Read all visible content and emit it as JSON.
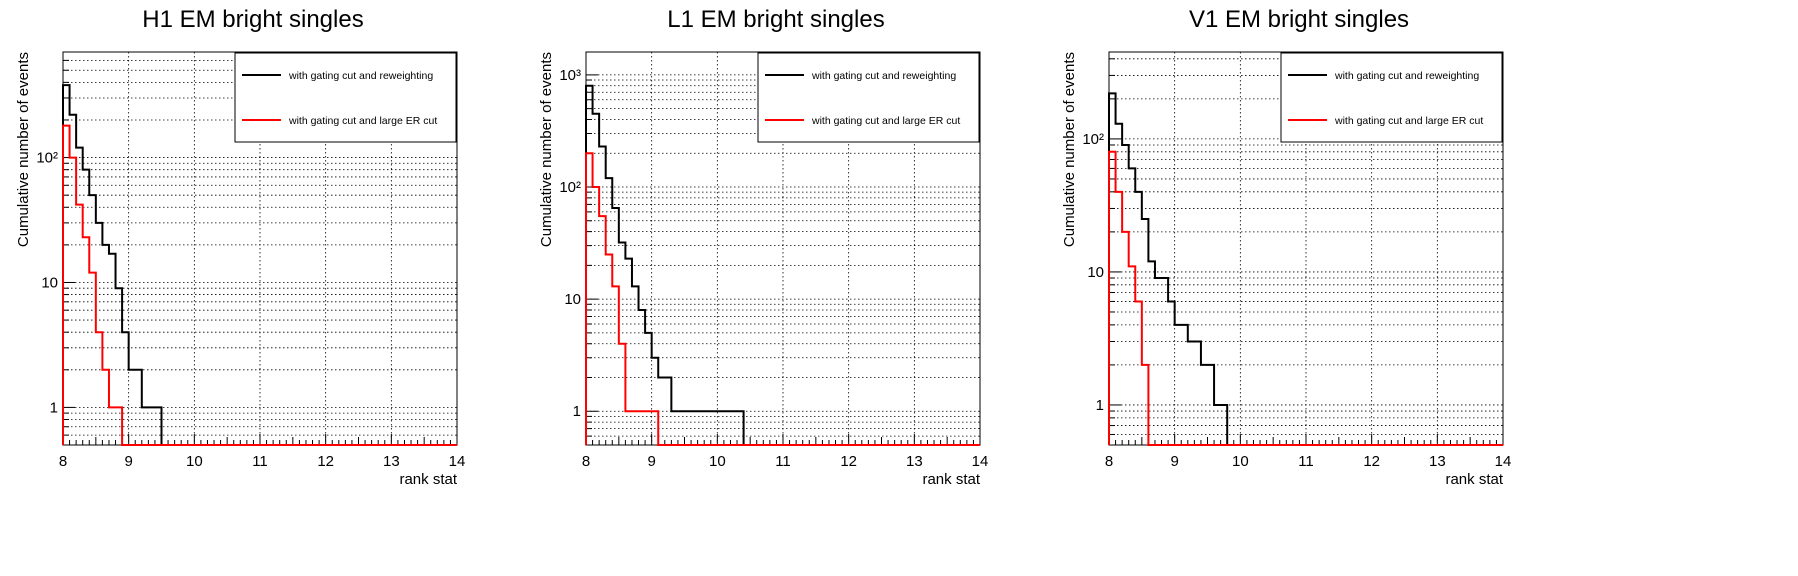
{
  "chart_data": [
    {
      "type": "line",
      "step": true,
      "title": "H1 EM bright singles",
      "xlabel": "rank stat",
      "ylabel": "Cumulative number of events",
      "xlim": [
        8,
        14
      ],
      "ylim": [
        0.5,
        700
      ],
      "yscale": "log",
      "grid": true,
      "legend_position": "top-right",
      "x_ticks": [
        "8",
        "9",
        "10",
        "11",
        "12",
        "13",
        "14"
      ],
      "y_ticks": [
        {
          "value": 1,
          "label": "1"
        },
        {
          "value": 10,
          "label": "10"
        },
        {
          "value": 100,
          "label": "10²"
        }
      ],
      "bin_width": 0.1,
      "series": [
        {
          "name": "with gating cut and reweighting",
          "color": "#000000",
          "x": [
            8.0,
            8.1,
            8.2,
            8.3,
            8.4,
            8.5,
            8.6,
            8.7,
            8.8,
            8.9,
            9.0,
            9.1,
            9.2,
            9.3,
            9.4,
            9.5
          ],
          "values": [
            380,
            220,
            120,
            80,
            50,
            30,
            20,
            17,
            9,
            4,
            2,
            2,
            1,
            1,
            1,
            0
          ]
        },
        {
          "name": "with gating cut and large ER cut",
          "color": "#ff0000",
          "x": [
            8.0,
            8.1,
            8.2,
            8.3,
            8.4,
            8.5,
            8.6,
            8.7,
            8.8,
            8.9
          ],
          "values": [
            180,
            100,
            42,
            23,
            12,
            4,
            2,
            1,
            1,
            0
          ]
        }
      ]
    },
    {
      "type": "line",
      "step": true,
      "title": "L1 EM bright singles",
      "xlabel": "rank stat",
      "ylabel": "Cumulative number of events",
      "xlim": [
        8,
        14
      ],
      "ylim": [
        0.5,
        1600
      ],
      "yscale": "log",
      "grid": true,
      "legend_position": "top-right",
      "x_ticks": [
        "8",
        "9",
        "10",
        "11",
        "12",
        "13",
        "14"
      ],
      "y_ticks": [
        {
          "value": 1,
          "label": "1"
        },
        {
          "value": 10,
          "label": "10"
        },
        {
          "value": 100,
          "label": "10²"
        },
        {
          "value": 1000,
          "label": "10³"
        }
      ],
      "bin_width": 0.1,
      "series": [
        {
          "name": "with gating cut and reweighting",
          "color": "#000000",
          "x": [
            8.0,
            8.1,
            8.2,
            8.3,
            8.4,
            8.5,
            8.6,
            8.7,
            8.8,
            8.9,
            9.0,
            9.1,
            9.2,
            9.3,
            10.4
          ],
          "values": [
            800,
            450,
            230,
            120,
            65,
            32,
            23,
            13,
            8,
            5,
            3,
            2,
            2,
            1,
            0
          ]
        },
        {
          "name": "with gating cut and large ER cut",
          "color": "#ff0000",
          "x": [
            8.0,
            8.1,
            8.2,
            8.3,
            8.4,
            8.5,
            8.6,
            9.1
          ],
          "values": [
            200,
            100,
            55,
            25,
            13,
            4,
            1,
            0
          ]
        }
      ]
    },
    {
      "type": "line",
      "step": true,
      "title": "V1 EM bright singles",
      "xlabel": "rank stat",
      "ylabel": "Cumulative number of events",
      "xlim": [
        8,
        14
      ],
      "ylim": [
        0.5,
        450
      ],
      "yscale": "log",
      "grid": true,
      "legend_position": "top-right",
      "x_ticks": [
        "8",
        "9",
        "10",
        "11",
        "12",
        "13",
        "14"
      ],
      "y_ticks": [
        {
          "value": 1,
          "label": "1"
        },
        {
          "value": 10,
          "label": "10"
        },
        {
          "value": 100,
          "label": "10²"
        }
      ],
      "bin_width": 0.1,
      "series": [
        {
          "name": "with gating cut and reweighting",
          "color": "#000000",
          "x": [
            8.0,
            8.1,
            8.2,
            8.3,
            8.4,
            8.5,
            8.6,
            8.7,
            8.8,
            8.9,
            9.0,
            9.1,
            9.2,
            9.3,
            9.4,
            9.5,
            9.6,
            9.7,
            9.8
          ],
          "values": [
            220,
            130,
            90,
            60,
            40,
            25,
            12,
            9,
            9,
            6,
            4,
            4,
            3,
            3,
            2,
            2,
            1,
            1,
            0
          ]
        },
        {
          "name": "with gating cut and large ER cut",
          "color": "#ff0000",
          "x": [
            8.0,
            8.1,
            8.2,
            8.3,
            8.4,
            8.5,
            8.6
          ],
          "values": [
            80,
            40,
            20,
            11,
            6,
            2,
            0
          ]
        }
      ]
    }
  ]
}
